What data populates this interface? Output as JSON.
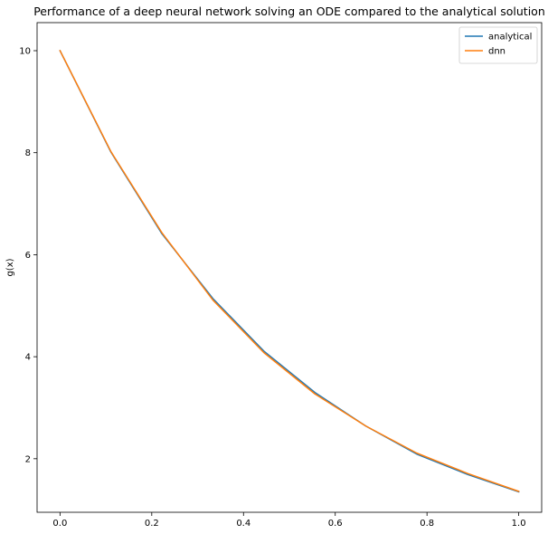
{
  "chart_data": {
    "type": "line",
    "title": "Performance of a deep neural network solving an ODE compared to the analytical solution",
    "xlabel": "",
    "ylabel": "g(x)",
    "xlim": [
      -0.05,
      1.05
    ],
    "ylim": [
      0.95,
      10.55
    ],
    "x_ticks": [
      0.0,
      0.2,
      0.4,
      0.6,
      0.8,
      1.0
    ],
    "x_tick_labels": [
      "0.0",
      "0.2",
      "0.4",
      "0.6",
      "0.8",
      "1.0"
    ],
    "y_ticks": [
      2,
      4,
      6,
      8,
      10
    ],
    "y_tick_labels": [
      "2",
      "4",
      "6",
      "8",
      "10"
    ],
    "grid": false,
    "legend_position": "top-right",
    "x": [
      0.0,
      0.1111,
      0.2222,
      0.3333,
      0.4444,
      0.5556,
      0.6667,
      0.7778,
      0.8889,
      1.0
    ],
    "series": [
      {
        "name": "analytical",
        "color": "#1f77b4",
        "values": [
          10.0,
          8.01,
          6.41,
          5.14,
          4.11,
          3.3,
          2.64,
          2.09,
          1.69,
          1.35
        ]
      },
      {
        "name": "dnn",
        "color": "#ff7f0e",
        "values": [
          10.0,
          8.02,
          6.43,
          5.11,
          4.08,
          3.27,
          2.64,
          2.11,
          1.71,
          1.36
        ]
      }
    ]
  }
}
